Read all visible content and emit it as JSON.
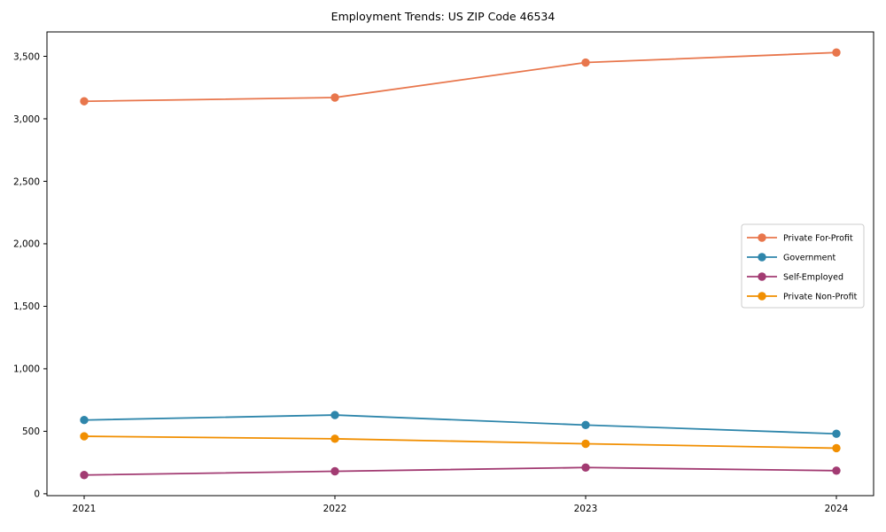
{
  "chart_data": {
    "type": "line",
    "title": "Employment Trends: US ZIP Code 46534",
    "categories": [
      "2021",
      "2022",
      "2023",
      "2024"
    ],
    "series": [
      {
        "name": "Private For-Profit",
        "color": "#E8764C",
        "values": [
          3140,
          3170,
          3450,
          3530
        ]
      },
      {
        "name": "Government",
        "color": "#2E86AB",
        "values": [
          590,
          630,
          550,
          480
        ]
      },
      {
        "name": "Self-Employed",
        "color": "#A23B72",
        "values": [
          150,
          180,
          210,
          185
        ]
      },
      {
        "name": "Private Non-Profit",
        "color": "#F18F01",
        "values": [
          460,
          440,
          400,
          365
        ]
      }
    ],
    "xlabel": "",
    "ylabel": "",
    "ylim": [
      -15,
      3695
    ],
    "yticks": [
      0,
      500,
      1000,
      1500,
      2000,
      2500,
      3000,
      3500
    ],
    "ytick_labels": [
      "0",
      "500",
      "1,000",
      "1,500",
      "2,000",
      "2,500",
      "3,000",
      "3,500"
    ],
    "grid": false,
    "legend_position": "center-right",
    "marker": "circle",
    "frame_color": "#000000",
    "legend_border_color": "#cccccc",
    "background_color": "#ffffff"
  }
}
